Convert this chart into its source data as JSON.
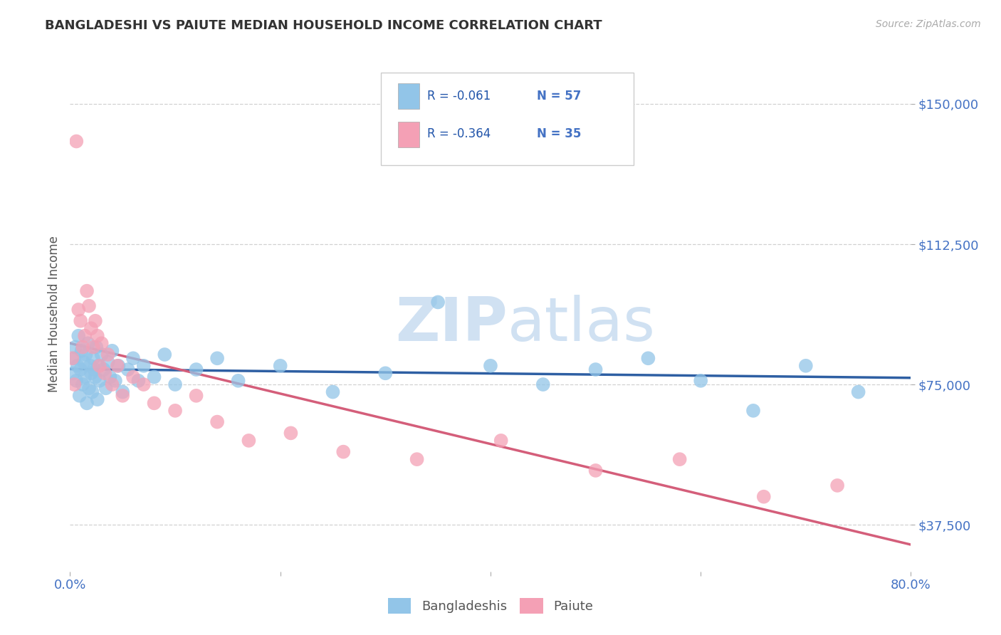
{
  "title": "BANGLADESHI VS PAIUTE MEDIAN HOUSEHOLD INCOME CORRELATION CHART",
  "source_text": "Source: ZipAtlas.com",
  "ylabel": "Median Household Income",
  "xlim": [
    0.0,
    0.8
  ],
  "ylim": [
    25000,
    162500
  ],
  "yticks": [
    37500,
    75000,
    112500,
    150000
  ],
  "ytick_labels": [
    "$37,500",
    "$75,000",
    "$112,500",
    "$150,000"
  ],
  "xticks": [
    0.0,
    0.2,
    0.4,
    0.6,
    0.8
  ],
  "xtick_labels": [
    "0.0%",
    "",
    "",
    "",
    "80.0%"
  ],
  "watermark_zip": "ZIP",
  "watermark_atlas": "atlas",
  "legend_r1": "R = -0.061",
  "legend_n1": "N = 57",
  "legend_r2": "R = -0.364",
  "legend_n2": "N = 35",
  "blue_color": "#92C5E8",
  "pink_color": "#F4A0B5",
  "blue_line_color": "#2E5FA3",
  "pink_line_color": "#D45E7A",
  "title_color": "#333333",
  "axis_label_color": "#555555",
  "tick_label_color": "#4472C4",
  "grid_color": "#CCCCCC",
  "background_color": "#FFFFFF",
  "bangladeshi_x": [
    0.003,
    0.004,
    0.005,
    0.006,
    0.007,
    0.008,
    0.009,
    0.01,
    0.011,
    0.012,
    0.013,
    0.014,
    0.015,
    0.016,
    0.017,
    0.018,
    0.019,
    0.02,
    0.021,
    0.022,
    0.023,
    0.024,
    0.025,
    0.026,
    0.027,
    0.028,
    0.03,
    0.032,
    0.034,
    0.036,
    0.038,
    0.04,
    0.043,
    0.046,
    0.05,
    0.055,
    0.06,
    0.065,
    0.07,
    0.08,
    0.09,
    0.1,
    0.12,
    0.14,
    0.16,
    0.2,
    0.25,
    0.3,
    0.35,
    0.4,
    0.45,
    0.5,
    0.55,
    0.6,
    0.65,
    0.7,
    0.75
  ],
  "bangladeshi_y": [
    78000,
    82000,
    85000,
    76000,
    80000,
    88000,
    72000,
    79000,
    84000,
    75000,
    81000,
    77000,
    83000,
    70000,
    86000,
    74000,
    80000,
    78000,
    73000,
    82000,
    79000,
    77000,
    85000,
    71000,
    80000,
    76000,
    83000,
    79000,
    74000,
    81000,
    77000,
    84000,
    76000,
    80000,
    73000,
    79000,
    82000,
    76000,
    80000,
    77000,
    83000,
    75000,
    79000,
    82000,
    76000,
    80000,
    73000,
    78000,
    97000,
    80000,
    75000,
    79000,
    82000,
    76000,
    68000,
    80000,
    73000
  ],
  "paiute_x": [
    0.002,
    0.004,
    0.006,
    0.008,
    0.01,
    0.012,
    0.014,
    0.016,
    0.018,
    0.02,
    0.022,
    0.024,
    0.026,
    0.028,
    0.03,
    0.033,
    0.036,
    0.04,
    0.045,
    0.05,
    0.06,
    0.07,
    0.08,
    0.1,
    0.12,
    0.14,
    0.17,
    0.21,
    0.26,
    0.33,
    0.41,
    0.5,
    0.58,
    0.66,
    0.73
  ],
  "paiute_y": [
    82000,
    75000,
    140000,
    95000,
    92000,
    85000,
    88000,
    100000,
    96000,
    90000,
    85000,
    92000,
    88000,
    80000,
    86000,
    78000,
    83000,
    75000,
    80000,
    72000,
    77000,
    75000,
    70000,
    68000,
    72000,
    65000,
    60000,
    62000,
    57000,
    55000,
    60000,
    52000,
    55000,
    45000,
    48000
  ]
}
